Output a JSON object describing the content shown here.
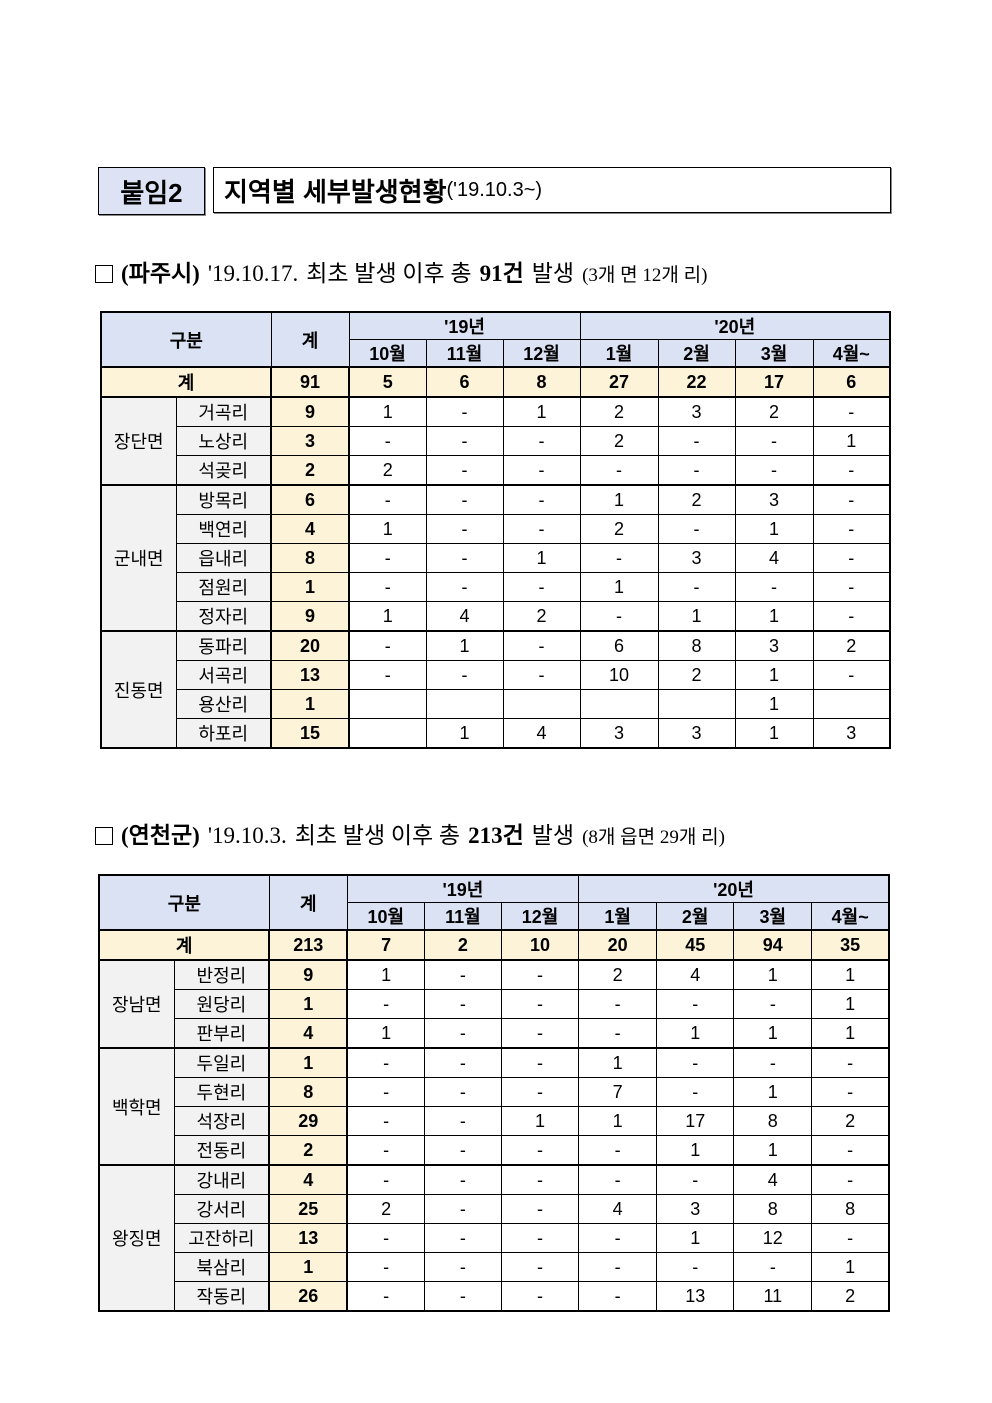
{
  "attachment_label": "붙임2",
  "title": "지역별 세부발생현황",
  "title_suffix": "('19.10.3~)",
  "sections": [
    {
      "heading": {
        "region": "(파주시)",
        "date": "'19.10.17.",
        "text1": "최초 발생 이후 총",
        "count": "91건",
        "text2": "발생",
        "paren": "(3개 면 12개 리)"
      },
      "table": {
        "header": {
          "category": "구분",
          "total": "계",
          "years": [
            "'19년",
            "'20년"
          ],
          "months": [
            "10월",
            "11월",
            "12월",
            "1월",
            "2월",
            "3월",
            "4월~"
          ]
        },
        "total_row": {
          "label": "계",
          "total": "91",
          "values": [
            "5",
            "6",
            "8",
            "27",
            "22",
            "17",
            "6"
          ]
        },
        "groups": [
          {
            "name": "장단면",
            "rows": [
              {
                "name": "거곡리",
                "total": "9",
                "values": [
                  "1",
                  "-",
                  "1",
                  "2",
                  "3",
                  "2",
                  "-"
                ]
              },
              {
                "name": "노상리",
                "total": "3",
                "values": [
                  "-",
                  "-",
                  "-",
                  "2",
                  "-",
                  "-",
                  "1"
                ]
              },
              {
                "name": "석곶리",
                "total": "2",
                "values": [
                  "2",
                  "-",
                  "-",
                  "-",
                  "-",
                  "-",
                  "-"
                ]
              }
            ]
          },
          {
            "name": "군내면",
            "rows": [
              {
                "name": "방목리",
                "total": "6",
                "values": [
                  "-",
                  "-",
                  "-",
                  "1",
                  "2",
                  "3",
                  "-"
                ]
              },
              {
                "name": "백연리",
                "total": "4",
                "values": [
                  "1",
                  "-",
                  "-",
                  "2",
                  "-",
                  "1",
                  "-"
                ]
              },
              {
                "name": "읍내리",
                "total": "8",
                "values": [
                  "-",
                  "-",
                  "1",
                  "-",
                  "3",
                  "4",
                  "-"
                ]
              },
              {
                "name": "점원리",
                "total": "1",
                "values": [
                  "-",
                  "-",
                  "-",
                  "1",
                  "-",
                  "-",
                  "-"
                ]
              },
              {
                "name": "정자리",
                "total": "9",
                "values": [
                  "1",
                  "4",
                  "2",
                  "-",
                  "1",
                  "1",
                  "-"
                ]
              }
            ]
          },
          {
            "name": "진동면",
            "rows": [
              {
                "name": "동파리",
                "total": "20",
                "values": [
                  "-",
                  "1",
                  "-",
                  "6",
                  "8",
                  "3",
                  "2"
                ]
              },
              {
                "name": "서곡리",
                "total": "13",
                "values": [
                  "-",
                  "-",
                  "-",
                  "10",
                  "2",
                  "1",
                  "-"
                ]
              },
              {
                "name": "용산리",
                "total": "1",
                "values": [
                  "",
                  "",
                  "",
                  "",
                  "",
                  "1",
                  ""
                ]
              },
              {
                "name": "하포리",
                "total": "15",
                "values": [
                  "",
                  "1",
                  "4",
                  "3",
                  "3",
                  "1",
                  "3"
                ]
              }
            ]
          }
        ]
      }
    },
    {
      "heading": {
        "region": "(연천군)",
        "date": "'19.10.3.",
        "text1": "최초 발생 이후 총",
        "count": "213건",
        "text2": "발생",
        "paren": "(8개 읍면 29개 리)"
      },
      "table": {
        "header": {
          "category": "구분",
          "total": "계",
          "years": [
            "'19년",
            "'20년"
          ],
          "months": [
            "10월",
            "11월",
            "12월",
            "1월",
            "2월",
            "3월",
            "4월~"
          ]
        },
        "total_row": {
          "label": "계",
          "total": "213",
          "values": [
            "7",
            "2",
            "10",
            "20",
            "45",
            "94",
            "35"
          ]
        },
        "groups": [
          {
            "name": "장남면",
            "rows": [
              {
                "name": "반정리",
                "total": "9",
                "values": [
                  "1",
                  "-",
                  "-",
                  "2",
                  "4",
                  "1",
                  "1"
                ]
              },
              {
                "name": "원당리",
                "total": "1",
                "values": [
                  "-",
                  "-",
                  "-",
                  "-",
                  "-",
                  "-",
                  "1"
                ]
              },
              {
                "name": "판부리",
                "total": "4",
                "values": [
                  "1",
                  "-",
                  "-",
                  "-",
                  "1",
                  "1",
                  "1"
                ]
              }
            ]
          },
          {
            "name": "백학면",
            "rows": [
              {
                "name": "두일리",
                "total": "1",
                "values": [
                  "-",
                  "-",
                  "-",
                  "1",
                  "-",
                  "-",
                  "-"
                ]
              },
              {
                "name": "두현리",
                "total": "8",
                "values": [
                  "-",
                  "-",
                  "-",
                  "7",
                  "-",
                  "1",
                  "-"
                ]
              },
              {
                "name": "석장리",
                "total": "29",
                "values": [
                  "-",
                  "-",
                  "1",
                  "1",
                  "17",
                  "8",
                  "2"
                ]
              },
              {
                "name": "전동리",
                "total": "2",
                "values": [
                  "-",
                  "-",
                  "-",
                  "-",
                  "1",
                  "1",
                  "-"
                ]
              }
            ]
          },
          {
            "name": "왕징면",
            "rows": [
              {
                "name": "강내리",
                "total": "4",
                "values": [
                  "-",
                  "-",
                  "-",
                  "-",
                  "-",
                  "4",
                  "-"
                ]
              },
              {
                "name": "강서리",
                "total": "25",
                "values": [
                  "2",
                  "-",
                  "-",
                  "4",
                  "3",
                  "8",
                  "8"
                ]
              },
              {
                "name": "고잔하리",
                "total": "13",
                "values": [
                  "-",
                  "-",
                  "-",
                  "-",
                  "1",
                  "12",
                  "-"
                ]
              },
              {
                "name": "북삼리",
                "total": "1",
                "values": [
                  "-",
                  "-",
                  "-",
                  "-",
                  "-",
                  "-",
                  "1"
                ]
              },
              {
                "name": "작동리",
                "total": "26",
                "values": [
                  "-",
                  "-",
                  "-",
                  "-",
                  "13",
                  "11",
                  "2"
                ]
              }
            ]
          }
        ]
      }
    }
  ]
}
